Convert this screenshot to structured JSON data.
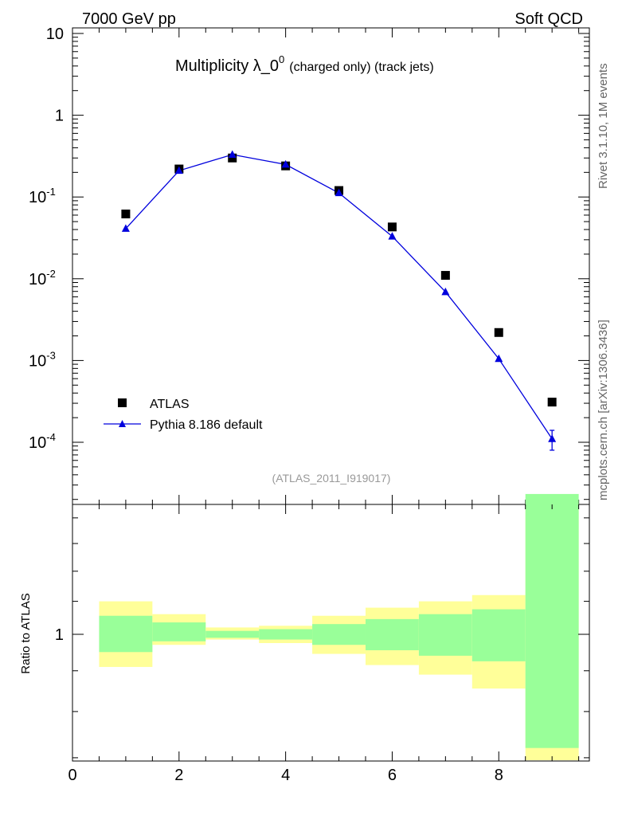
{
  "header": {
    "left": "7000 GeV pp",
    "right": "Soft QCD"
  },
  "side_labels": {
    "rivet": "Rivet 3.1.10,  1M events",
    "mcplots": "mcplots.cern.ch [arXiv:1306.3436]"
  },
  "chart_data": [
    {
      "type": "scatter",
      "title": "Multiplicity λ_0",
      "title_superscript": "0",
      "title_suffix": "(charged only) (track jets)",
      "analysis_tag": "(ATLAS_2011_I919017)",
      "xlim": [
        0,
        9.7
      ],
      "ylim": [
        2e-05,
        11
      ],
      "y_scale": "log",
      "y_tick_labels": [
        "10",
        "1",
        "10^-1",
        "10^-2",
        "10^-3",
        "10^-4"
      ],
      "legend_position": "bottom-left",
      "series": [
        {
          "name": "ATLAS",
          "marker": "square",
          "color": "#000000",
          "x": [
            1,
            2,
            3,
            4,
            5,
            6,
            7,
            8,
            9
          ],
          "y": [
            0.062,
            0.22,
            0.3,
            0.24,
            0.12,
            0.043,
            0.011,
            0.0022,
            0.00031
          ]
        },
        {
          "name": "Pythia 8.186 default",
          "marker": "triangle",
          "color": "#0000dd",
          "x": [
            1,
            2,
            3,
            4,
            5,
            6,
            7,
            8,
            9
          ],
          "y": [
            0.041,
            0.21,
            0.33,
            0.25,
            0.112,
            0.033,
            0.0069,
            0.00105,
            0.00011
          ],
          "y_err": [
            0,
            0,
            0,
            0,
            0,
            0,
            0,
            0,
            3e-05
          ]
        }
      ]
    },
    {
      "type": "area",
      "ylabel": "Ratio to ATLAS",
      "xlim": [
        0,
        9.7
      ],
      "ylim": [
        0.5,
        1.8
      ],
      "y_scale": "log",
      "y_tick_labels": [
        "1"
      ],
      "x_tick_labels": [
        "0",
        "2",
        "4",
        "6",
        "8"
      ],
      "bands": {
        "x_edges": [
          0.5,
          1.5,
          2.5,
          3.5,
          4.5,
          5.5,
          6.5,
          7.5,
          8.5,
          9.5
        ],
        "yellow_low": [
          0.91,
          0.97,
          0.985,
          0.975,
          0.945,
          0.915,
          0.89,
          0.855,
          0.5
        ],
        "yellow_high": [
          1.1,
          1.06,
          1.02,
          1.025,
          1.055,
          1.08,
          1.1,
          1.12,
          1.7
        ],
        "green_low": [
          0.95,
          0.98,
          0.99,
          0.985,
          0.97,
          0.955,
          0.94,
          0.925,
          0.72
        ],
        "green_high": [
          1.055,
          1.035,
          1.01,
          1.015,
          1.03,
          1.045,
          1.06,
          1.075,
          1.5
        ],
        "yellow_color": "#ffff99",
        "green_color": "#99ff99"
      }
    }
  ]
}
